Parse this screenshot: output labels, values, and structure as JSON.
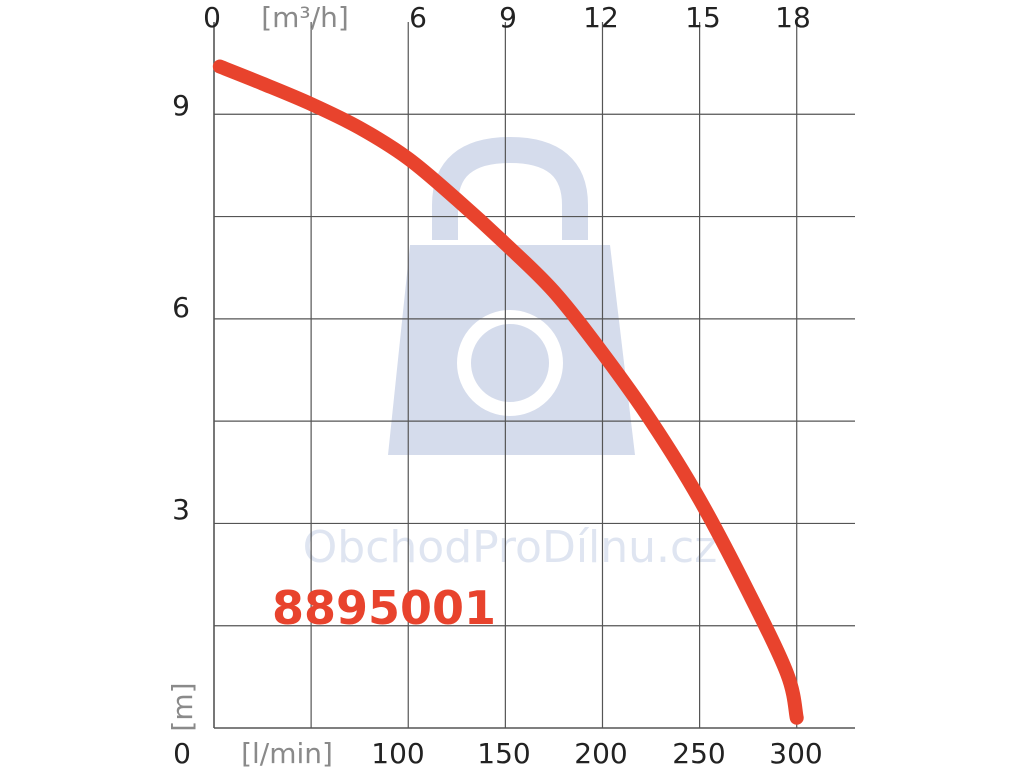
{
  "chart_data": {
    "type": "line",
    "x_bottom": {
      "unit": "[l/min]",
      "ticks": [
        "0",
        "100",
        "150",
        "200",
        "250",
        "300"
      ],
      "range": [
        0,
        330
      ]
    },
    "x_top": {
      "unit": "[m³/h]",
      "ticks": [
        "0",
        "6",
        "9",
        "12",
        "15",
        "18"
      ]
    },
    "y": {
      "unit": "[m]",
      "ticks": [
        "0",
        "3",
        "6",
        "9"
      ],
      "range": [
        0,
        10.5
      ]
    },
    "series": [
      {
        "x": [
          3,
          25,
          50,
          75,
          100,
          125,
          150,
          175,
          200,
          225,
          250,
          275,
          295,
          300
        ],
        "y": [
          9.7,
          9.45,
          9.15,
          8.8,
          8.35,
          7.75,
          7.1,
          6.4,
          5.5,
          4.5,
          3.35,
          2.0,
          0.8,
          0.15
        ]
      }
    ],
    "annotation": "8895001",
    "grid": true
  },
  "watermark": "ObchodProDílnu.cz",
  "colors": {
    "curve": "#e8432d",
    "grid": "#555555",
    "watermark": "#d5dcec"
  }
}
